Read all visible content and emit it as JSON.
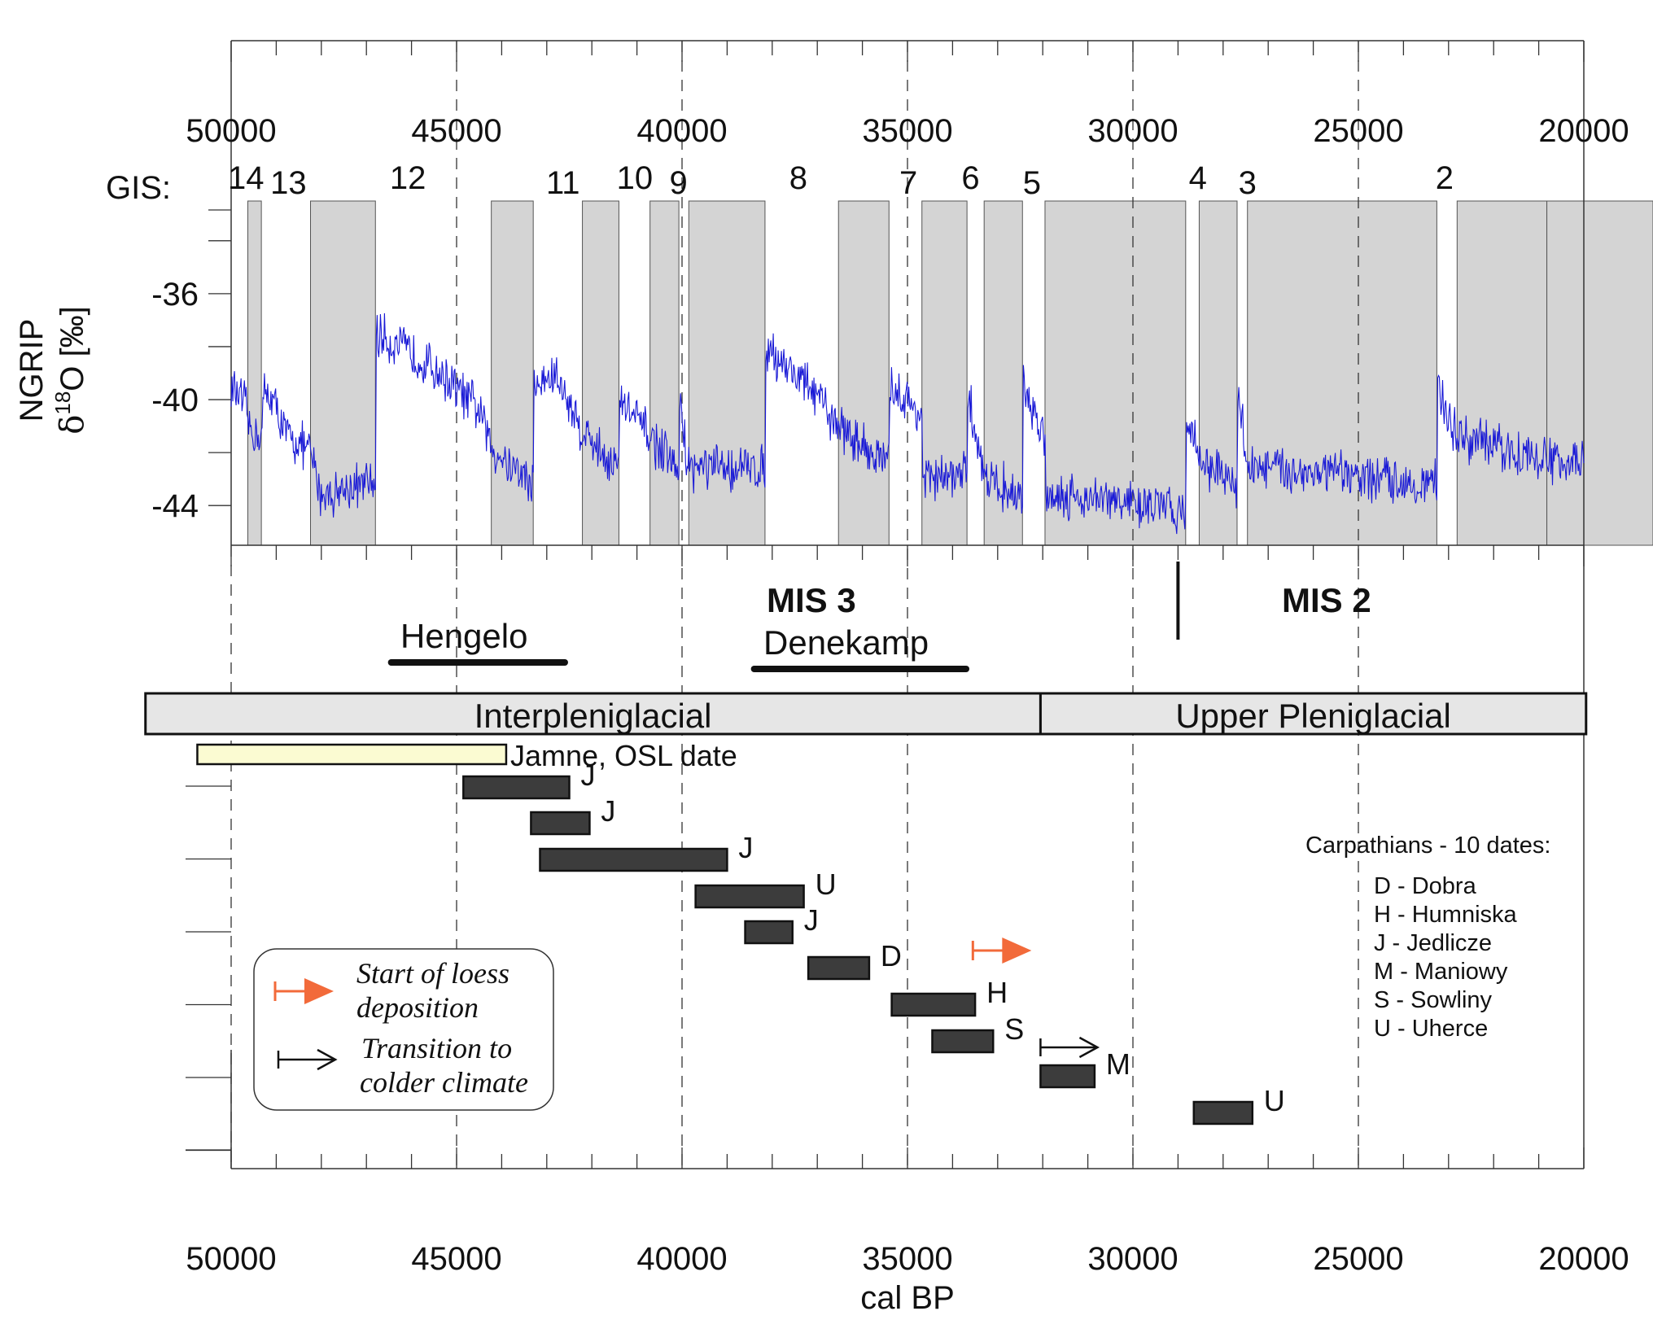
{
  "chart_data": {
    "type": "line",
    "x_axis": {
      "label": "cal BP",
      "range": [
        50000,
        20000
      ],
      "ticks": [
        50000,
        45000,
        40000,
        35000,
        30000,
        25000,
        20000
      ],
      "tick_labels": [
        "50000",
        "45000",
        "40000",
        "35000",
        "30000",
        "25000",
        "20000"
      ],
      "minor_step": 1000,
      "gridlines_dashed_at": [
        45000,
        40000,
        35000,
        30000,
        25000
      ]
    },
    "y_axis": {
      "label_line1": "NGRIP",
      "label_line2_pre": "δ",
      "label_line2_sup": "18",
      "label_line2_post": "O [‰]",
      "range": [
        -45.5,
        -32.5
      ],
      "ticks": [
        -36,
        -40,
        -44
      ],
      "tick_labels": [
        "-36",
        "-40",
        "-44"
      ],
      "minor_ticks": [
        -34,
        -38,
        -42,
        -46
      ]
    },
    "gis": {
      "prefix": "GIS:",
      "labels": [
        {
          "text": "14",
          "x": 49670
        },
        {
          "text": "13",
          "x": 48730
        },
        {
          "text": "12",
          "x": 46080
        },
        {
          "text": "11",
          "x": 42640
        },
        {
          "text": "10",
          "x": 41050
        },
        {
          "text": "9",
          "x": 40080
        },
        {
          "text": "8",
          "x": 37420
        },
        {
          "text": "7",
          "x": 34980
        },
        {
          "text": "6",
          "x": 33600
        },
        {
          "text": "5",
          "x": 32240
        },
        {
          "text": "4",
          "x": 28560
        },
        {
          "text": "3",
          "x": 27460
        },
        {
          "text": "2",
          "x": 23090
        }
      ]
    },
    "stadials": [
      [
        49630,
        49330
      ],
      [
        48240,
        46800
      ],
      [
        44230,
        43300
      ],
      [
        42210,
        41400
      ],
      [
        40710,
        40070
      ],
      [
        39850,
        38160
      ],
      [
        36530,
        35410
      ],
      [
        34680,
        33680
      ],
      [
        33300,
        32450
      ],
      [
        31950,
        28830
      ],
      [
        28530,
        27690
      ],
      [
        27460,
        23260
      ],
      [
        22810,
        20820
      ],
      [
        20820,
        18400
      ]
    ],
    "series": [
      {
        "color": "#1a1ad6",
        "anchors": [
          [
            50000,
            -39.5
          ],
          [
            49650,
            -40.4
          ],
          [
            49630,
            -41.0
          ],
          [
            49330,
            -41.5
          ],
          [
            49280,
            -39.8
          ],
          [
            49100,
            -39.9
          ],
          [
            48800,
            -41.3
          ],
          [
            48240,
            -42.0
          ],
          [
            48000,
            -43.6
          ],
          [
            47000,
            -43.2
          ],
          [
            46800,
            -43.2
          ],
          [
            46780,
            -37.5
          ],
          [
            45500,
            -38.8
          ],
          [
            44500,
            -40.4
          ],
          [
            44230,
            -41.8
          ],
          [
            43300,
            -43.2
          ],
          [
            43280,
            -39.5
          ],
          [
            42800,
            -39.1
          ],
          [
            42210,
            -41.2
          ],
          [
            41400,
            -42.6
          ],
          [
            41380,
            -40.0
          ],
          [
            40710,
            -41.4
          ],
          [
            40070,
            -42.8
          ],
          [
            40050,
            -40.2
          ],
          [
            39850,
            -42.6
          ],
          [
            38160,
            -42.6
          ],
          [
            38140,
            -38.0
          ],
          [
            37200,
            -39.5
          ],
          [
            36530,
            -41.0
          ],
          [
            35410,
            -42.5
          ],
          [
            35390,
            -39.5
          ],
          [
            34680,
            -40.6
          ],
          [
            34660,
            -43.0
          ],
          [
            33680,
            -42.9
          ],
          [
            33660,
            -39.8
          ],
          [
            33300,
            -42.8
          ],
          [
            32450,
            -43.8
          ],
          [
            32430,
            -39.6
          ],
          [
            31950,
            -41.5
          ],
          [
            31930,
            -43.5
          ],
          [
            28830,
            -44.2
          ],
          [
            28810,
            -40.6
          ],
          [
            28550,
            -42.1
          ],
          [
            27690,
            -43.4
          ],
          [
            27670,
            -39.6
          ],
          [
            27460,
            -42.5
          ],
          [
            23260,
            -43.2
          ],
          [
            23240,
            -39.5
          ],
          [
            22810,
            -41.4
          ],
          [
            20820,
            -42.3
          ],
          [
            20000,
            -42.4
          ]
        ],
        "noise_amplitude": 0.75
      }
    ],
    "annotations": {
      "mis3": "MIS 3",
      "mis2": "MIS 2",
      "mis_boundary_x": 29000,
      "hengelo": "Hengelo",
      "hengelo_range": [
        46450,
        42600
      ],
      "denekamp": "Denekamp",
      "denekamp_range": [
        38400,
        33700
      ]
    },
    "periods": [
      {
        "label": "Interpleniglacial",
        "from": 51900,
        "to": 32050
      },
      {
        "label": "Upper Pleniglacial",
        "from": 32050,
        "to": 19950
      }
    ],
    "dates": [
      {
        "label": "Jamne, OSL date",
        "from": 50750,
        "to": 43900,
        "style": "osl"
      },
      {
        "label": "J",
        "from": 44850,
        "to": 42500
      },
      {
        "label": "J",
        "from": 43350,
        "to": 42050
      },
      {
        "label": "J",
        "from": 43150,
        "to": 39000
      },
      {
        "label": "U",
        "from": 39700,
        "to": 37300
      },
      {
        "label": "J",
        "from": 38600,
        "to": 37550
      },
      {
        "label": "D",
        "from": 37200,
        "to": 35850
      },
      {
        "label": "H",
        "from": 35350,
        "to": 33500
      },
      {
        "label": "S",
        "from": 34450,
        "to": 33100
      },
      {
        "label": "M",
        "from": 32050,
        "to": 30850
      },
      {
        "label": "U",
        "from": 28650,
        "to": 27350
      }
    ],
    "dates_y_minor_ticks": 6,
    "arrows": {
      "loess_start_x": 33550,
      "colder_transition_x": 32050
    },
    "legend": {
      "loess": [
        "Start of loess",
        "deposition"
      ],
      "colder": [
        "Transition to",
        "colder climate"
      ],
      "loess_color": "#f26a3a"
    },
    "carpathians": {
      "title": "Carpathians - 10 dates:",
      "items": [
        "D - Dobra",
        "H - Humniska",
        "J - Jedlicze",
        "M -  Maniowy",
        "S - Sowliny",
        "U - Uherce"
      ]
    }
  }
}
